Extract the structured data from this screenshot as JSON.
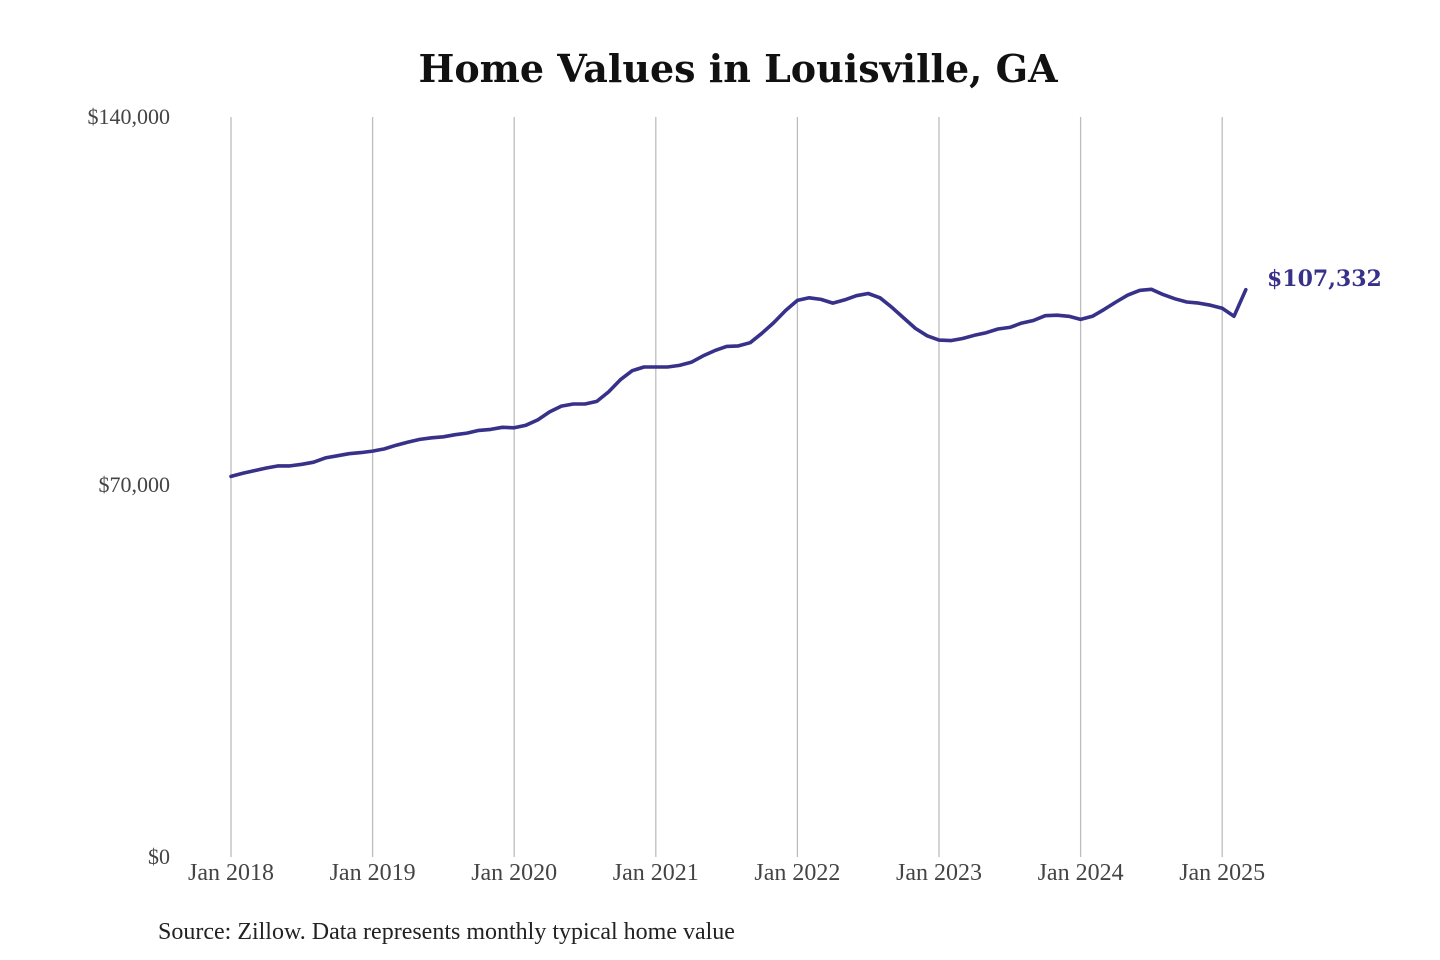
{
  "chart_data": {
    "type": "line",
    "title": "Home Values in Louisville, GA",
    "xlabel": "",
    "ylabel": "",
    "x_tick_labels": [
      "Jan 2018",
      "Jan 2019",
      "Jan 2020",
      "Jan 2021",
      "Jan 2022",
      "Jan 2023",
      "Jan 2024",
      "Jan 2025"
    ],
    "y_tick_labels": [
      "$0",
      "$70,000",
      "$140,000"
    ],
    "y_ticks": [
      0,
      70000,
      140000
    ],
    "ylim": [
      0,
      140000
    ],
    "xlim": [
      "2018-01",
      "2025-03"
    ],
    "grid": "vertical",
    "legend": "none",
    "end_label": "$107,332",
    "source": "Source: Zillow. Data represents monthly typical home value",
    "colors": {
      "line": "#37318a",
      "grid": "#bdbdbd"
    },
    "series": [
      {
        "x": [
          "2018-01",
          "2018-02",
          "2018-03",
          "2018-04",
          "2018-05",
          "2018-06",
          "2018-07",
          "2018-08",
          "2018-09",
          "2018-10",
          "2018-11",
          "2018-12",
          "2019-01",
          "2019-02",
          "2019-03",
          "2019-04",
          "2019-05",
          "2019-06",
          "2019-07",
          "2019-08",
          "2019-09",
          "2019-10",
          "2019-11",
          "2019-12",
          "2020-01",
          "2020-02",
          "2020-03",
          "2020-04",
          "2020-05",
          "2020-06",
          "2020-07",
          "2020-08",
          "2020-09",
          "2020-10",
          "2020-11",
          "2020-12",
          "2021-01",
          "2021-02",
          "2021-03",
          "2021-04",
          "2021-05",
          "2021-06",
          "2021-07",
          "2021-08",
          "2021-09",
          "2021-10",
          "2021-11",
          "2021-12",
          "2022-01",
          "2022-02",
          "2022-03",
          "2022-04",
          "2022-05",
          "2022-06",
          "2022-07",
          "2022-08",
          "2022-09",
          "2022-10",
          "2022-11",
          "2022-12",
          "2023-01",
          "2023-02",
          "2023-03",
          "2023-04",
          "2023-05",
          "2023-06",
          "2023-07",
          "2023-08",
          "2023-09",
          "2023-10",
          "2023-11",
          "2023-12",
          "2024-01",
          "2024-02",
          "2024-03",
          "2024-04",
          "2024-05",
          "2024-06",
          "2024-07",
          "2024-08",
          "2024-09",
          "2024-10",
          "2024-11",
          "2024-12",
          "2025-01",
          "2025-02",
          "2025-03"
        ],
        "values": [
          72000,
          72600,
          73100,
          73600,
          74000,
          74000,
          74300,
          74700,
          75500,
          75900,
          76300,
          76500,
          76800,
          77200,
          77900,
          78500,
          79000,
          79300,
          79500,
          79900,
          80200,
          80700,
          80900,
          81300,
          81200,
          81700,
          82700,
          84200,
          85300,
          85700,
          85700,
          86200,
          88000,
          90300,
          92000,
          92700,
          92700,
          92700,
          93000,
          93600,
          94800,
          95800,
          96600,
          96700,
          97300,
          99100,
          101100,
          103400,
          105300,
          105800,
          105500,
          104800,
          105400,
          106200,
          106600,
          105800,
          104000,
          102000,
          100000,
          98600,
          97800,
          97700,
          98100,
          98700,
          99200,
          99900,
          100200,
          101000,
          101500,
          102400,
          102500,
          102300,
          101700,
          102300,
          103600,
          105000,
          106300,
          107200,
          107400,
          106400,
          105600,
          105000,
          104800,
          104400,
          103800,
          102300,
          107332
        ]
      }
    ]
  }
}
